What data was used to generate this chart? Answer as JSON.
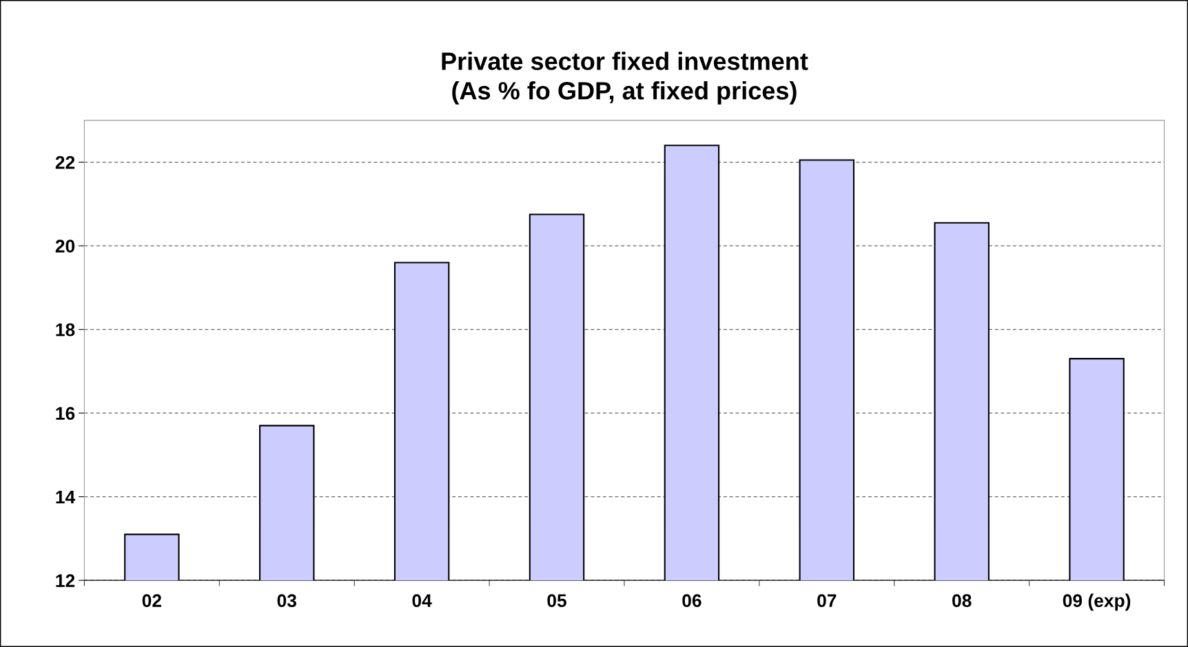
{
  "chart_data": {
    "type": "bar",
    "title": "Private sector fixed investment\n(As % fo GDP, at fixed prices)",
    "categories": [
      "02",
      "03",
      "04",
      "05",
      "06",
      "07",
      "08",
      "09 (exp)"
    ],
    "values": [
      13.1,
      15.7,
      19.6,
      20.75,
      22.4,
      22.05,
      20.55,
      17.3
    ],
    "color": "#ccccff",
    "ylim": [
      12,
      23
    ],
    "yticks": [
      12,
      14,
      16,
      18,
      20,
      22
    ],
    "grid": "y"
  }
}
